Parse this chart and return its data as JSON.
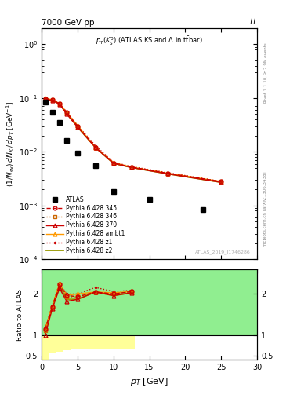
{
  "title_top_left": "7000 GeV pp",
  "title_top_right": "tt",
  "plot_title": "p_{T}(K^{0}_{S}) (ATLAS KS and #Lambda in ttbar)",
  "watermark": "ATLAS_2019_I1746286",
  "ylabel_main": "(1/N_{ev}) dN_{K} / dp_{T} [GeV^{-1}]",
  "ylabel_ratio": "Ratio to ATLAS",
  "xlabel": "p_{T} [GeV]",
  "xlim": [
    0,
    30
  ],
  "ylim_main_lo": 0.0001,
  "ylim_main_hi": 2.0,
  "ylim_ratio_lo": 0.4,
  "ylim_ratio_hi": 2.6,
  "atlas_x": [
    0.5,
    1.5,
    2.5,
    3.5,
    5.0,
    7.5,
    10.0,
    15.0,
    22.5
  ],
  "atlas_y": [
    0.085,
    0.055,
    0.035,
    0.016,
    0.0095,
    0.0055,
    0.0018,
    0.0013,
    0.00085
  ],
  "mc_x": [
    0.5,
    1.5,
    2.5,
    3.5,
    5.0,
    7.5,
    10.0,
    12.5,
    17.5,
    25.0
  ],
  "mc345_y": [
    0.097,
    0.093,
    0.078,
    0.054,
    0.03,
    0.012,
    0.0062,
    0.0052,
    0.004,
    0.0028
  ],
  "mc346_y": [
    0.095,
    0.093,
    0.078,
    0.053,
    0.03,
    0.012,
    0.0062,
    0.0052,
    0.004,
    0.0028
  ],
  "mc370_y": [
    0.095,
    0.091,
    0.077,
    0.05,
    0.029,
    0.012,
    0.0061,
    0.0051,
    0.0039,
    0.0027
  ],
  "mc_ambt1_y": [
    0.098,
    0.094,
    0.079,
    0.054,
    0.031,
    0.012,
    0.0063,
    0.0052,
    0.004,
    0.0028
  ],
  "mc_z1_y": [
    0.099,
    0.095,
    0.079,
    0.055,
    0.031,
    0.013,
    0.0064,
    0.0053,
    0.0041,
    0.0028
  ],
  "mc_z2_y": [
    0.096,
    0.092,
    0.077,
    0.052,
    0.029,
    0.012,
    0.0061,
    0.0051,
    0.0039,
    0.0027
  ],
  "ratio_x": [
    0.5,
    1.5,
    2.5,
    3.5,
    5.0,
    7.5,
    10.0,
    12.5
  ],
  "ratio345": [
    1.14,
    1.69,
    2.23,
    1.97,
    1.93,
    2.05,
    2.0,
    2.06
  ],
  "ratio346": [
    1.12,
    1.69,
    2.23,
    1.93,
    1.93,
    2.05,
    2.0,
    2.06
  ],
  "ratio370": [
    1.0,
    1.65,
    2.14,
    1.82,
    1.87,
    2.05,
    1.96,
    2.03
  ],
  "ratio_ambt1": [
    1.15,
    1.71,
    2.26,
    1.97,
    2.0,
    2.05,
    2.03,
    2.06
  ],
  "ratio_z1": [
    1.16,
    1.73,
    2.26,
    2.0,
    2.0,
    2.16,
    2.06,
    2.09
  ],
  "ratio_z2": [
    1.13,
    1.67,
    2.2,
    1.87,
    1.87,
    2.05,
    1.96,
    2.03
  ],
  "yel_x_edges": [
    0,
    1,
    2,
    3,
    4,
    6,
    8,
    13,
    18,
    30
  ],
  "yel_lo": [
    0.4,
    0.56,
    0.6,
    0.63,
    0.65,
    0.65,
    0.65,
    1.0,
    1.0,
    1.0
  ],
  "yel_hi": [
    2.6,
    2.6,
    2.6,
    2.6,
    2.6,
    2.6,
    2.6,
    2.6,
    2.6,
    2.6
  ],
  "grn_x_edges": [
    0,
    1,
    2,
    3,
    4,
    6,
    8,
    13,
    18,
    30
  ],
  "grn_lo": [
    1.0,
    1.0,
    1.0,
    1.0,
    1.0,
    1.0,
    1.0,
    1.0,
    1.0,
    1.0
  ],
  "grn_hi": [
    2.6,
    2.6,
    2.6,
    2.6,
    2.6,
    2.6,
    2.6,
    2.6,
    2.6,
    2.6
  ],
  "color_345": "#cc0000",
  "color_346": "#cc6600",
  "color_370": "#cc0000",
  "color_ambt1": "#ff9900",
  "color_z1": "#cc0000",
  "color_z2": "#999900",
  "color_green": "#90ee90",
  "color_yellow": "#ffff99"
}
